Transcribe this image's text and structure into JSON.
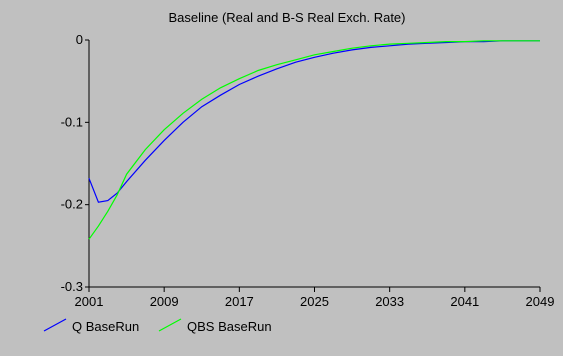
{
  "chart_data": {
    "type": "line",
    "title": "Baseline (Real and B-S Real Exch. Rate)",
    "xlabel": "",
    "ylabel": "",
    "xlim": [
      2001,
      2049
    ],
    "ylim": [
      -0.3,
      0
    ],
    "xticks": [
      "2001",
      "2009",
      "2017",
      "2025",
      "2033",
      "2041",
      "2049"
    ],
    "yticks": [
      "0",
      "-0.1",
      "-0.2",
      "-0.3"
    ],
    "legend": "bottom-left",
    "grid": false,
    "colors": {
      "background": "#c0c0c0",
      "Q": "#0000ff",
      "QBS": "#00ff00"
    },
    "series": [
      {
        "name": "Q BaseRun",
        "color": "#0000ff",
        "x": [
          2001,
          2002,
          2003,
          2004,
          2005,
          2007,
          2009,
          2011,
          2013,
          2015,
          2017,
          2019,
          2021,
          2023,
          2025,
          2027,
          2029,
          2031,
          2033,
          2035,
          2037,
          2039,
          2041,
          2043,
          2045,
          2047,
          2049
        ],
        "y": [
          -0.168,
          -0.197,
          -0.195,
          -0.186,
          -0.172,
          -0.146,
          -0.122,
          -0.1,
          -0.081,
          -0.067,
          -0.054,
          -0.044,
          -0.035,
          -0.027,
          -0.021,
          -0.016,
          -0.012,
          -0.009,
          -0.007,
          -0.005,
          -0.004,
          -0.003,
          -0.002,
          -0.002,
          -0.001,
          -0.001,
          -0.001
        ]
      },
      {
        "name": "QBS BaseRun",
        "color": "#00ff00",
        "x": [
          2001,
          2002,
          2003,
          2004,
          2005,
          2007,
          2009,
          2011,
          2013,
          2015,
          2017,
          2019,
          2021,
          2023,
          2025,
          2027,
          2029,
          2031,
          2033,
          2035,
          2037,
          2039,
          2041,
          2043,
          2045,
          2047,
          2049
        ],
        "y": [
          -0.242,
          -0.226,
          -0.208,
          -0.188,
          -0.163,
          -0.133,
          -0.109,
          -0.089,
          -0.072,
          -0.058,
          -0.047,
          -0.037,
          -0.03,
          -0.024,
          -0.018,
          -0.014,
          -0.01,
          -0.007,
          -0.005,
          -0.004,
          -0.003,
          -0.002,
          -0.002,
          -0.001,
          -0.001,
          -0.001,
          -0.001
        ]
      }
    ]
  }
}
